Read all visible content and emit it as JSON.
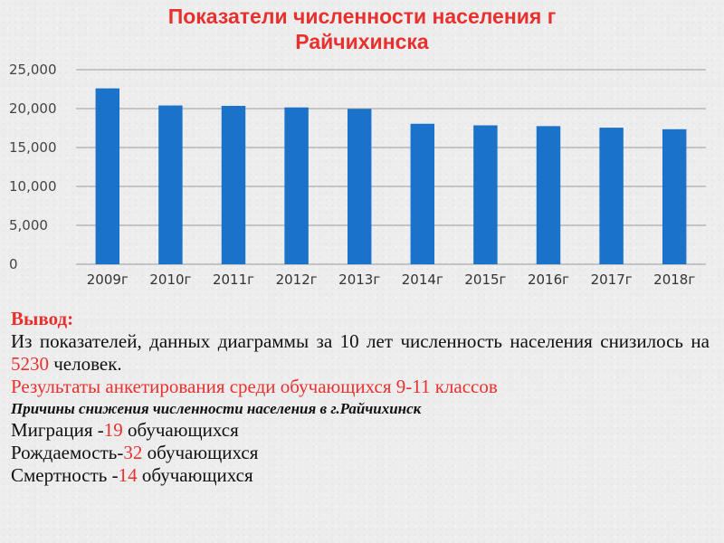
{
  "chart_data": {
    "type": "bar",
    "title": "Показатели численности населения г Райчихинска",
    "title_lines": [
      "Показатели численности населения г",
      "Райчихинска"
    ],
    "categories": [
      "2009г",
      "2010г",
      "2011г",
      "2012г",
      "2013г",
      "2014г",
      "2015г",
      "2016г",
      "2017г",
      "2018г"
    ],
    "values": [
      22600,
      20400,
      20350,
      20150,
      19950,
      18050,
      17850,
      17750,
      17550,
      17350
    ],
    "y_ticks": [
      "0",
      "5,000",
      "10,000",
      "15,000",
      "20,000",
      "25,000"
    ],
    "ylim": [
      0,
      25000
    ],
    "xlabel": "",
    "ylabel": "",
    "grid": true,
    "legend": "none",
    "bar_color": "#1a72c9"
  },
  "conclusion": {
    "heading": "Вывод:",
    "line1_prefix": "Из показателей, данных  диаграммы  за 10 лет  численность населения  снизилось на ",
    "line1_value": "5230",
    "line1_suffix": " человек.",
    "survey_line": "Результаты анкетирования среди обучающихся 9-11 классов",
    "reasons_heading": "Причины снижения численности населения в г.Райчихинск",
    "migration_label": "Миграция -",
    "migration_value": "19",
    "migration_suffix": " обучающихся",
    "birth_label": "Рождаемость-",
    "birth_value": "32",
    "birth_suffix": " обучающихся",
    "death_label": "Смертность -",
    "death_value": "14",
    "death_suffix": " обучающихся"
  },
  "colors": {
    "accent_red": "#e8312f",
    "bar_blue": "#1a72c9",
    "text": "#111111"
  }
}
